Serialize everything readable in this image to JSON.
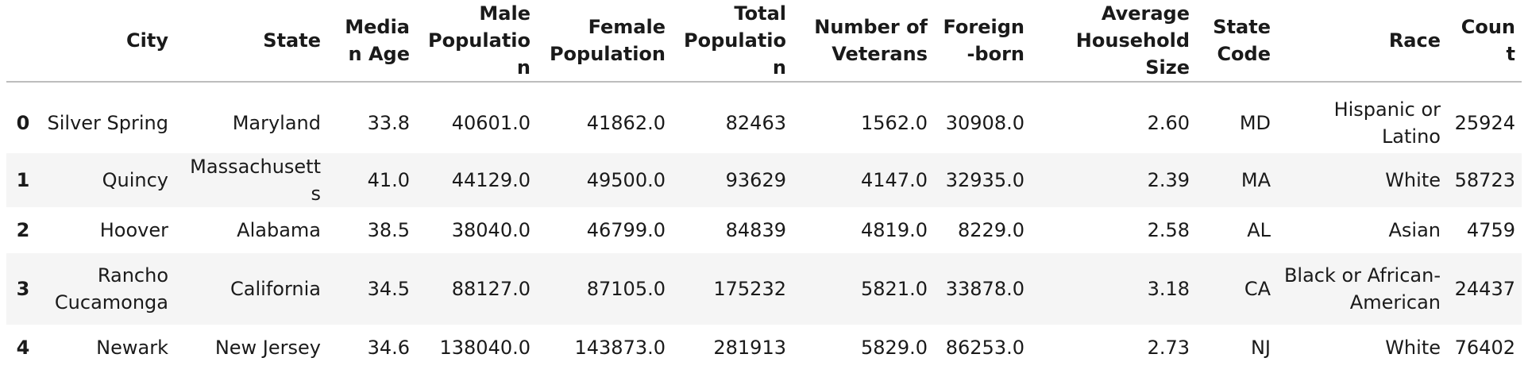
{
  "table": {
    "columns": [
      "",
      "City",
      "State",
      "Median Age",
      "Male Population",
      "Female Population",
      "Total Population",
      "Number of Veterans",
      "Foreign-born",
      "Average Household Size",
      "State Code",
      "Race",
      "Count"
    ],
    "rows": [
      {
        "index": "0",
        "cells": [
          "Silver Spring",
          "Maryland",
          "33.8",
          "40601.0",
          "41862.0",
          "82463",
          "1562.0",
          "30908.0",
          "2.60",
          "MD",
          "Hispanic or Latino",
          "25924"
        ]
      },
      {
        "index": "1",
        "cells": [
          "Quincy",
          "Massachusetts",
          "41.0",
          "44129.0",
          "49500.0",
          "93629",
          "4147.0",
          "32935.0",
          "2.39",
          "MA",
          "White",
          "58723"
        ]
      },
      {
        "index": "2",
        "cells": [
          "Hoover",
          "Alabama",
          "38.5",
          "38040.0",
          "46799.0",
          "84839",
          "4819.0",
          "8229.0",
          "2.58",
          "AL",
          "Asian",
          "4759"
        ]
      },
      {
        "index": "3",
        "cells": [
          "Rancho Cucamonga",
          "California",
          "34.5",
          "88127.0",
          "87105.0",
          "175232",
          "5821.0",
          "33878.0",
          "3.18",
          "CA",
          "Black or African-American",
          "24437"
        ]
      },
      {
        "index": "4",
        "cells": [
          "Newark",
          "New Jersey",
          "34.6",
          "138040.0",
          "143873.0",
          "281913",
          "5829.0",
          "86253.0",
          "2.73",
          "NJ",
          "White",
          "76402"
        ]
      }
    ]
  }
}
